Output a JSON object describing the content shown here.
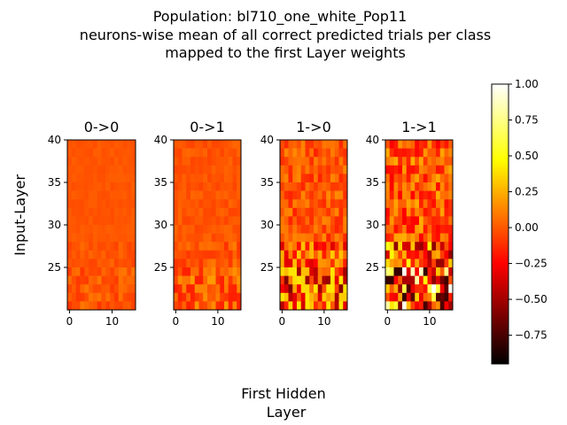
{
  "figure": {
    "title_lines": [
      "Population: bl710_one_white_Pop11",
      " neurons-wise mean of all correct predicted trials per class",
      "mapped to the first Layer weights"
    ],
    "xlabel_lines": [
      "First Hidden",
      "Layer"
    ],
    "ylabel": "Input-Layer"
  },
  "chart_data": {
    "type": "heatmap",
    "colormap": "hot",
    "panels": [
      {
        "title": "0->0",
        "x_ticks": [
          "0",
          "10"
        ],
        "y_ticks": [
          "40",
          "35",
          "30",
          "25"
        ],
        "value_range": [
          -0.1,
          0.1
        ],
        "dominant_value": 0.0
      },
      {
        "title": "0->1",
        "x_ticks": [
          "0",
          "10"
        ],
        "y_ticks": [
          "40",
          "35",
          "30",
          "25"
        ],
        "value_range": [
          -0.15,
          0.2
        ],
        "dominant_value": 0.0
      },
      {
        "title": "1->0",
        "x_ticks": [
          "0",
          "10"
        ],
        "y_ticks": [
          "40",
          "35",
          "30",
          "25"
        ],
        "value_range": [
          -0.6,
          0.4
        ],
        "dominant_value": 0.0
      },
      {
        "title": "1->1",
        "x_ticks": [
          "0",
          "10"
        ],
        "y_ticks": [
          "40",
          "35",
          "30",
          "25"
        ],
        "value_range": [
          -0.8,
          1.0
        ],
        "dominant_value": 0.0
      }
    ],
    "x_range": [
      0,
      16
    ],
    "y_range": [
      20,
      40
    ],
    "colorbar": {
      "min": -0.95,
      "max": 1.0,
      "ticks": [
        "1.00",
        "0.75",
        "0.50",
        "0.25",
        "0.00",
        "−0.25",
        "−0.50",
        "−0.75"
      ],
      "tick_values": [
        1.0,
        0.75,
        0.5,
        0.25,
        0.0,
        -0.25,
        -0.5,
        -0.75
      ]
    }
  }
}
